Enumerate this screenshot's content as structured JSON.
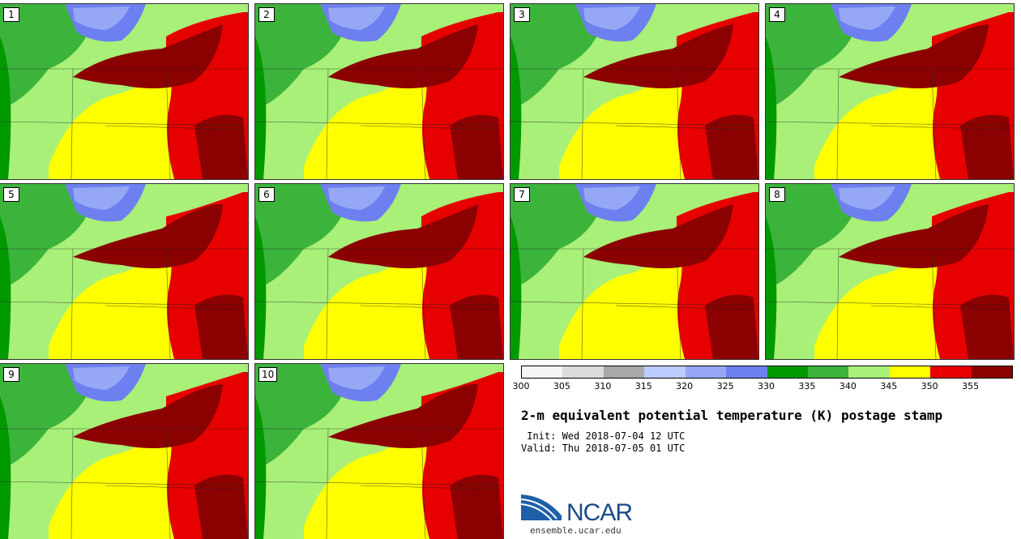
{
  "panels": [
    {
      "label": "1"
    },
    {
      "label": "2"
    },
    {
      "label": "3"
    },
    {
      "label": "4"
    },
    {
      "label": "5"
    },
    {
      "label": "6"
    },
    {
      "label": "7"
    },
    {
      "label": "8"
    },
    {
      "label": "9"
    },
    {
      "label": "10"
    }
  ],
  "colorbar": {
    "ticks": [
      "300",
      "305",
      "310",
      "315",
      "320",
      "325",
      "330",
      "335",
      "340",
      "345",
      "350",
      "355"
    ],
    "colors": [
      "#f4f4f4",
      "#dcdcdc",
      "#a8a8a8",
      "#bcccff",
      "#96a8f5",
      "#6e80f0",
      "#009900",
      "#3cb43c",
      "#a8f078",
      "#ffff00",
      "#e60000",
      "#8b0000"
    ]
  },
  "title": "2-m equivalent potential temperature (K) postage stamp",
  "init_line": " Init: Wed 2018-07-04 12 UTC",
  "valid_line": "Valid: Thu 2018-07-05 01 UTC",
  "logo_text": "NCAR",
  "site": "ensemble.ucar.edu"
}
